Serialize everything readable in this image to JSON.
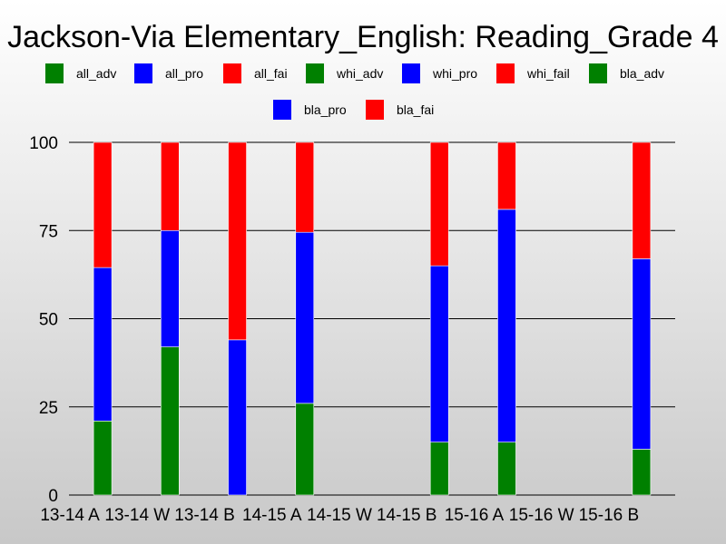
{
  "chart_data": {
    "type": "bar",
    "stacked": true,
    "title": "Jackson-Via Elementary_English: Reading_Grade 4",
    "legend": [
      {
        "name": "all_adv",
        "color": "#008000"
      },
      {
        "name": "all_pro",
        "color": "#0000ff"
      },
      {
        "name": "all_fai",
        "color": "#ff0000"
      },
      {
        "name": "whi_adv",
        "color": "#008000"
      },
      {
        "name": "whi_pro",
        "color": "#0000ff"
      },
      {
        "name": "whi_fail",
        "color": "#ff0000"
      },
      {
        "name": "bla_adv",
        "color": "#008000"
      },
      {
        "name": "bla_pro",
        "color": "#0000ff"
      },
      {
        "name": "bla_fai",
        "color": "#ff0000"
      }
    ],
    "legend_position": "top",
    "categories": [
      "13-14 A",
      "13-14 W",
      "13-14 B",
      "14-15 A",
      "14-15 W",
      "14-15 B",
      "15-16 A",
      "15-16 W",
      "15-16 B"
    ],
    "x_tick_labels": [
      "13-14 A",
      "13-14 W",
      "13-14 B",
      "14-15 A",
      "14-15 W",
      "14-15 B",
      "15-16 A",
      "15-16 W",
      "15-16 B"
    ],
    "series": [
      {
        "name": "adv",
        "color": "#008000",
        "values": [
          21,
          42,
          0,
          26,
          0,
          15,
          15,
          0,
          13
        ]
      },
      {
        "name": "pro",
        "color": "#0000ff",
        "values": [
          43.5,
          33,
          44,
          48.5,
          0,
          50,
          66,
          0,
          54
        ]
      },
      {
        "name": "fail",
        "color": "#ff0000",
        "values": [
          35.5,
          25,
          56,
          25.5,
          0,
          35,
          19,
          0,
          33
        ]
      }
    ],
    "ylim": [
      0,
      100
    ],
    "yticks": [
      0,
      25,
      50,
      75,
      100
    ],
    "grid": true
  }
}
